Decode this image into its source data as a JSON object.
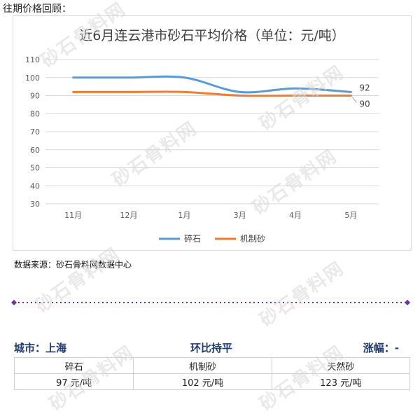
{
  "page": {
    "heading": "往期价格回顾：",
    "source": "数据来源：砂石骨料网数据中心",
    "watermark": "砂石骨料网"
  },
  "colors": {
    "series_1": "#5b9bd5",
    "series_2": "#ed7d31",
    "divider": "#7030a0",
    "stats_text": "#1f3b6f"
  },
  "chart_data": {
    "type": "line",
    "title": "近6月连云港市砂石平均价格（单位：元/吨）",
    "categories": [
      "11月",
      "12月",
      "1月",
      "3月",
      "4月",
      "5月"
    ],
    "series": [
      {
        "name": "碎石",
        "values": [
          100,
          100,
          100,
          92,
          94,
          92
        ]
      },
      {
        "name": "机制砂",
        "values": [
          92,
          92,
          92,
          90,
          90,
          90
        ]
      }
    ],
    "yticks": [
      30,
      40,
      50,
      60,
      70,
      80,
      90,
      100,
      110
    ],
    "ylim": [
      30,
      110
    ],
    "grid": true,
    "legend": "bottom",
    "end_labels": [
      "92",
      "90"
    ]
  },
  "stats": {
    "city": "城市：上海",
    "trend": "环比持平",
    "change": "涨幅：-"
  },
  "price_table": {
    "headers": [
      "碎石",
      "机制砂",
      "天然砂"
    ],
    "values": [
      "97 元/吨",
      "102 元/吨",
      "123 元/吨"
    ]
  }
}
